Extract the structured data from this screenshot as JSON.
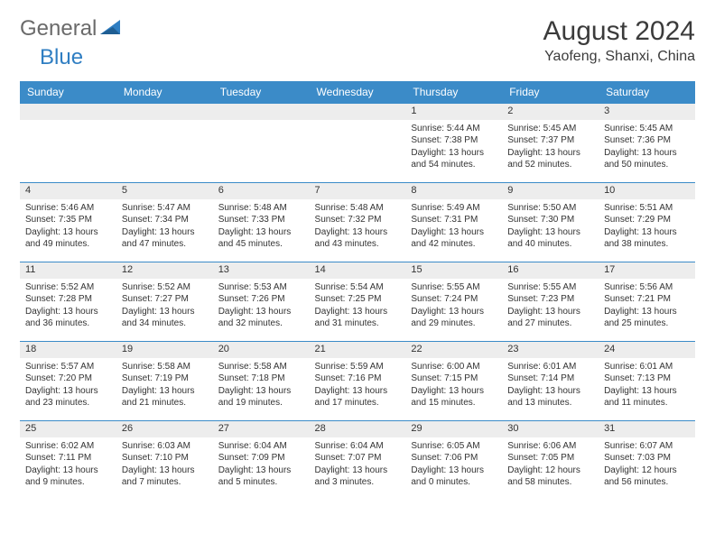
{
  "brand": {
    "part1": "General",
    "part2": "Blue"
  },
  "title": "August 2024",
  "location": "Yaofeng, Shanxi, China",
  "colors": {
    "header_bg": "#3b8bc8",
    "header_text": "#ffffff",
    "daynum_bg": "#ededed",
    "row_divider": "#3b8bc8",
    "logo_gray": "#6a6a6a",
    "logo_blue": "#2f7ec2",
    "text": "#333333",
    "page_bg": "#ffffff"
  },
  "typography": {
    "title_fontsize": 30,
    "location_fontsize": 16,
    "weekday_fontsize": 12,
    "daynum_fontsize": 11,
    "cell_fontsize": 10
  },
  "weekdays": [
    "Sunday",
    "Monday",
    "Tuesday",
    "Wednesday",
    "Thursday",
    "Friday",
    "Saturday"
  ],
  "weeks": [
    [
      null,
      null,
      null,
      null,
      {
        "n": "1",
        "sunrise": "5:44 AM",
        "sunset": "7:38 PM",
        "daylight": "13 hours and 54 minutes."
      },
      {
        "n": "2",
        "sunrise": "5:45 AM",
        "sunset": "7:37 PM",
        "daylight": "13 hours and 52 minutes."
      },
      {
        "n": "3",
        "sunrise": "5:45 AM",
        "sunset": "7:36 PM",
        "daylight": "13 hours and 50 minutes."
      }
    ],
    [
      {
        "n": "4",
        "sunrise": "5:46 AM",
        "sunset": "7:35 PM",
        "daylight": "13 hours and 49 minutes."
      },
      {
        "n": "5",
        "sunrise": "5:47 AM",
        "sunset": "7:34 PM",
        "daylight": "13 hours and 47 minutes."
      },
      {
        "n": "6",
        "sunrise": "5:48 AM",
        "sunset": "7:33 PM",
        "daylight": "13 hours and 45 minutes."
      },
      {
        "n": "7",
        "sunrise": "5:48 AM",
        "sunset": "7:32 PM",
        "daylight": "13 hours and 43 minutes."
      },
      {
        "n": "8",
        "sunrise": "5:49 AM",
        "sunset": "7:31 PM",
        "daylight": "13 hours and 42 minutes."
      },
      {
        "n": "9",
        "sunrise": "5:50 AM",
        "sunset": "7:30 PM",
        "daylight": "13 hours and 40 minutes."
      },
      {
        "n": "10",
        "sunrise": "5:51 AM",
        "sunset": "7:29 PM",
        "daylight": "13 hours and 38 minutes."
      }
    ],
    [
      {
        "n": "11",
        "sunrise": "5:52 AM",
        "sunset": "7:28 PM",
        "daylight": "13 hours and 36 minutes."
      },
      {
        "n": "12",
        "sunrise": "5:52 AM",
        "sunset": "7:27 PM",
        "daylight": "13 hours and 34 minutes."
      },
      {
        "n": "13",
        "sunrise": "5:53 AM",
        "sunset": "7:26 PM",
        "daylight": "13 hours and 32 minutes."
      },
      {
        "n": "14",
        "sunrise": "5:54 AM",
        "sunset": "7:25 PM",
        "daylight": "13 hours and 31 minutes."
      },
      {
        "n": "15",
        "sunrise": "5:55 AM",
        "sunset": "7:24 PM",
        "daylight": "13 hours and 29 minutes."
      },
      {
        "n": "16",
        "sunrise": "5:55 AM",
        "sunset": "7:23 PM",
        "daylight": "13 hours and 27 minutes."
      },
      {
        "n": "17",
        "sunrise": "5:56 AM",
        "sunset": "7:21 PM",
        "daylight": "13 hours and 25 minutes."
      }
    ],
    [
      {
        "n": "18",
        "sunrise": "5:57 AM",
        "sunset": "7:20 PM",
        "daylight": "13 hours and 23 minutes."
      },
      {
        "n": "19",
        "sunrise": "5:58 AM",
        "sunset": "7:19 PM",
        "daylight": "13 hours and 21 minutes."
      },
      {
        "n": "20",
        "sunrise": "5:58 AM",
        "sunset": "7:18 PM",
        "daylight": "13 hours and 19 minutes."
      },
      {
        "n": "21",
        "sunrise": "5:59 AM",
        "sunset": "7:16 PM",
        "daylight": "13 hours and 17 minutes."
      },
      {
        "n": "22",
        "sunrise": "6:00 AM",
        "sunset": "7:15 PM",
        "daylight": "13 hours and 15 minutes."
      },
      {
        "n": "23",
        "sunrise": "6:01 AM",
        "sunset": "7:14 PM",
        "daylight": "13 hours and 13 minutes."
      },
      {
        "n": "24",
        "sunrise": "6:01 AM",
        "sunset": "7:13 PM",
        "daylight": "13 hours and 11 minutes."
      }
    ],
    [
      {
        "n": "25",
        "sunrise": "6:02 AM",
        "sunset": "7:11 PM",
        "daylight": "13 hours and 9 minutes."
      },
      {
        "n": "26",
        "sunrise": "6:03 AM",
        "sunset": "7:10 PM",
        "daylight": "13 hours and 7 minutes."
      },
      {
        "n": "27",
        "sunrise": "6:04 AM",
        "sunset": "7:09 PM",
        "daylight": "13 hours and 5 minutes."
      },
      {
        "n": "28",
        "sunrise": "6:04 AM",
        "sunset": "7:07 PM",
        "daylight": "13 hours and 3 minutes."
      },
      {
        "n": "29",
        "sunrise": "6:05 AM",
        "sunset": "7:06 PM",
        "daylight": "13 hours and 0 minutes."
      },
      {
        "n": "30",
        "sunrise": "6:06 AM",
        "sunset": "7:05 PM",
        "daylight": "12 hours and 58 minutes."
      },
      {
        "n": "31",
        "sunrise": "6:07 AM",
        "sunset": "7:03 PM",
        "daylight": "12 hours and 56 minutes."
      }
    ]
  ],
  "labels": {
    "sunrise": "Sunrise:",
    "sunset": "Sunset:",
    "daylight": "Daylight:"
  }
}
